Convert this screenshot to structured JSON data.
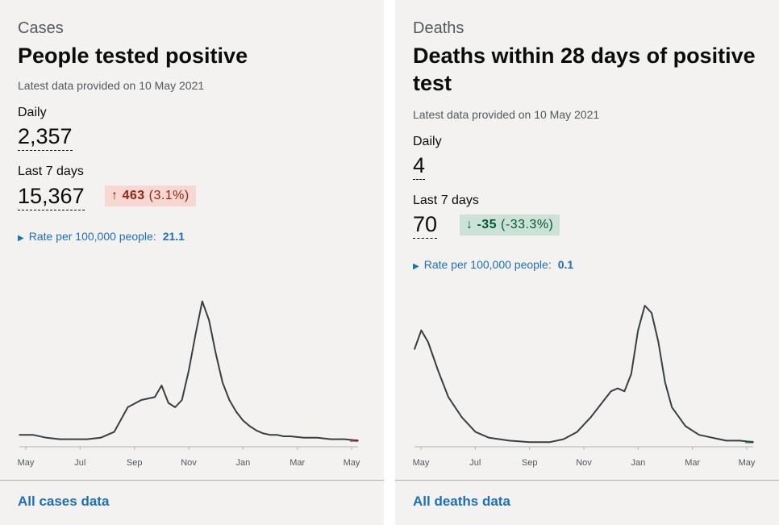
{
  "cards": {
    "cases": {
      "caption": "Cases",
      "heading": "People tested positive",
      "latest": "Latest data provided on 10 May 2021",
      "daily_label": "Daily",
      "daily_value": "2,357",
      "week_label": "Last 7 days",
      "week_value": "15,367",
      "change_arrow": "↑",
      "change_value": "463",
      "change_pct": "(3.1%)",
      "rate_label": "Rate per 100,000 people:",
      "rate_value": "21.1",
      "link": "All cases data"
    },
    "deaths": {
      "caption": "Deaths",
      "heading": "Deaths within 28 days of positive test",
      "latest": "Latest data provided on 10 May 2021",
      "daily_label": "Daily",
      "daily_value": "4",
      "week_label": "Last 7 days",
      "week_value": "70",
      "change_arrow": "↓",
      "change_value": "-35",
      "change_pct": "(-33.3%)",
      "rate_label": "Rate per 100,000 people:",
      "rate_value": "0.1",
      "link": "All deaths data"
    }
  },
  "colors": {
    "card_bg": "#f3f2f1",
    "link": "#1d70b8",
    "line": "#383f43",
    "up_bg": "#f6d7d2",
    "up_fg": "#942514",
    "down_bg": "#cce2d8",
    "down_fg": "#005a30"
  },
  "icons": {
    "expand": "triangle-right-icon",
    "up": "arrow-up-icon",
    "down": "arrow-down-icon"
  },
  "chart_data": [
    {
      "type": "line",
      "title": "",
      "ticks": [
        "May",
        "Jul",
        "Sep",
        "Nov",
        "Jan",
        "Mar",
        "May"
      ],
      "x": [
        0,
        0.04,
        0.08,
        0.12,
        0.16,
        0.2,
        0.24,
        0.28,
        0.32,
        0.36,
        0.4,
        0.42,
        0.44,
        0.46,
        0.48,
        0.5,
        0.52,
        0.54,
        0.56,
        0.58,
        0.6,
        0.62,
        0.64,
        0.66,
        0.68,
        0.7,
        0.72,
        0.74,
        0.76,
        0.78,
        0.8,
        0.84,
        0.88,
        0.92,
        0.96,
        1.0
      ],
      "y": [
        0.06,
        0.06,
        0.04,
        0.03,
        0.03,
        0.03,
        0.04,
        0.08,
        0.25,
        0.3,
        0.32,
        0.4,
        0.28,
        0.25,
        0.3,
        0.5,
        0.75,
        0.98,
        0.85,
        0.62,
        0.42,
        0.3,
        0.22,
        0.16,
        0.12,
        0.09,
        0.07,
        0.06,
        0.06,
        0.05,
        0.05,
        0.04,
        0.04,
        0.03,
        0.03,
        0.02
      ],
      "ylim": [
        0,
        1
      ]
    },
    {
      "type": "line",
      "title": "",
      "ticks": [
        "May",
        "Jul",
        "Sep",
        "Nov",
        "Jan",
        "Mar",
        "May"
      ],
      "x": [
        0,
        0.02,
        0.04,
        0.07,
        0.1,
        0.14,
        0.18,
        0.22,
        0.28,
        0.34,
        0.4,
        0.44,
        0.48,
        0.52,
        0.56,
        0.58,
        0.6,
        0.62,
        0.64,
        0.66,
        0.68,
        0.7,
        0.72,
        0.74,
        0.76,
        0.8,
        0.84,
        0.88,
        0.92,
        0.96,
        1.0
      ],
      "y": [
        0.65,
        0.78,
        0.7,
        0.5,
        0.32,
        0.18,
        0.08,
        0.04,
        0.02,
        0.01,
        0.01,
        0.03,
        0.08,
        0.18,
        0.3,
        0.36,
        0.38,
        0.36,
        0.48,
        0.78,
        0.95,
        0.9,
        0.7,
        0.42,
        0.25,
        0.12,
        0.06,
        0.04,
        0.02,
        0.02,
        0.01
      ],
      "ylim": [
        0,
        1
      ]
    }
  ]
}
